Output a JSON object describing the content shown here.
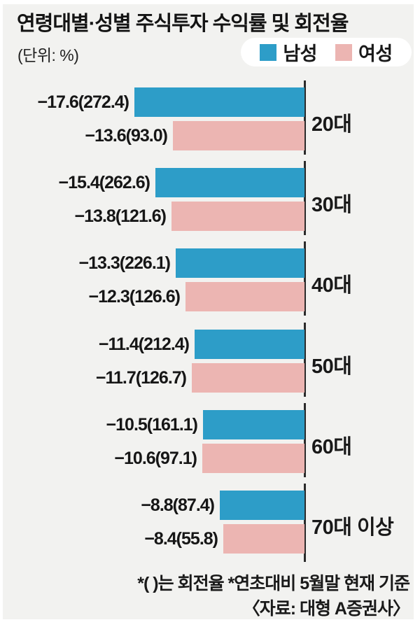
{
  "title": "연령대별·성별 주식투자 수익률 및 회전율",
  "unit_label": "(단위: %)",
  "legend": {
    "male": "남성",
    "female": "여성"
  },
  "footnote": "*(  )는 회전율 *연초대비 5월말 현재 기준",
  "source": "〈자료: 대형 A증권사〉",
  "colors": {
    "male": "#2D9DC8",
    "female": "#ECB5B2",
    "background": "#F2F2F0",
    "axis": "#2B2B2B",
    "legend_pill": "#FFFFFF",
    "text": "#161616"
  },
  "chart_data": {
    "type": "bar",
    "orientation": "horizontal",
    "title": "연령대별·성별 주식투자 수익률 및 회전율",
    "unit": "%",
    "legend_position": "top-right",
    "baseline": "zero baseline on right side, bars extend left for negative returns",
    "bar_length_represents": "absolute value of return (%)",
    "categories": [
      "20대",
      "30대",
      "40대",
      "50대",
      "60대",
      "70대 이상"
    ],
    "series": [
      {
        "key": "male",
        "name": "남성",
        "returns": [
          -17.6,
          -15.4,
          -13.3,
          -11.4,
          -10.5,
          -8.8
        ],
        "turnover": [
          272.4,
          262.6,
          226.1,
          212.4,
          161.1,
          87.4
        ]
      },
      {
        "key": "female",
        "name": "여성",
        "returns": [
          -13.6,
          -13.8,
          -12.3,
          -11.7,
          -10.6,
          -8.4
        ],
        "turnover": [
          93.0,
          121.6,
          126.6,
          126.7,
          97.1,
          55.8
        ]
      }
    ],
    "labels": {
      "male": [
        "−17.6(272.4)",
        "−15.4(262.6)",
        "−13.3(226.1)",
        "−11.4(212.4)",
        "−10.5(161.1)",
        "−8.8(87.4)"
      ],
      "female": [
        "−13.6(93.0)",
        "−13.8(121.6)",
        "−12.3(126.6)",
        "−11.7(126.7)",
        "−10.6(97.1)",
        "−8.4(55.8)"
      ]
    }
  }
}
